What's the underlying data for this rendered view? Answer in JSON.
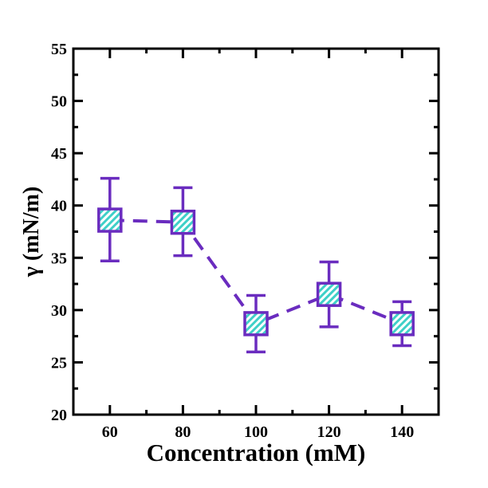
{
  "chart_data": {
    "type": "scatter",
    "title": "",
    "xlabel": "Concentration (mM)",
    "ylabel": "γ (mN/m)",
    "xlim": [
      50,
      150
    ],
    "ylim": [
      20,
      55
    ],
    "x_ticks": [
      60,
      80,
      100,
      120,
      140
    ],
    "y_ticks": [
      20,
      25,
      30,
      35,
      40,
      45,
      50,
      55
    ],
    "x_minor_step": 10,
    "y_minor_step": 2.5,
    "grid": false,
    "series": [
      {
        "x": [
          60,
          80,
          100,
          120,
          140
        ],
        "y": [
          38.6,
          38.4,
          28.7,
          31.5,
          28.7
        ],
        "err_low": [
          34.7,
          35.2,
          26.0,
          28.4,
          26.6
        ],
        "err_high": [
          42.6,
          41.7,
          31.4,
          34.6,
          30.8
        ],
        "color": "#6a2cbf",
        "fill_color": "#3fd0c8",
        "marker": "square-hatched",
        "line_style": "dashed"
      }
    ]
  }
}
